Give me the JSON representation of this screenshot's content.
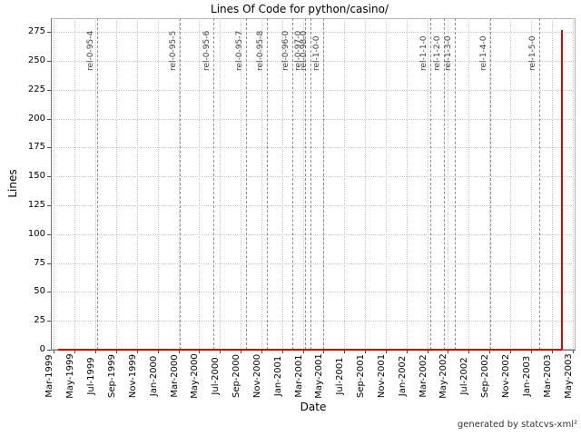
{
  "footer_credit": "generated by statcvs-xml²",
  "chart_data": {
    "type": "line",
    "title": "Lines Of Code for python/casino/",
    "xlabel": "Date",
    "ylabel": "Lines",
    "x_unit": "months since Mar-1999",
    "x_tick_step_months": 2,
    "x_tick_labels": [
      "Mar-1999",
      "May-1999",
      "Jul-1999",
      "Sep-1999",
      "Nov-1999",
      "Jan-2000",
      "Mar-2000",
      "May-2000",
      "Jul-2000",
      "Sep-2000",
      "Nov-2000",
      "Jan-2001",
      "Mar-2001",
      "May-2001",
      "Jul-2001",
      "Sep-2001",
      "Nov-2001",
      "Jan-2002",
      "Mar-2002",
      "May-2002",
      "Jul-2002",
      "Sep-2002",
      "Nov-2002",
      "Jan-2003",
      "Mar-2003",
      "May-2003"
    ],
    "y_ticks": [
      0,
      25,
      50,
      75,
      100,
      125,
      150,
      175,
      200,
      225,
      250,
      275
    ],
    "ylim": [
      0,
      287
    ],
    "xlim_months": [
      -0.3,
      50.3
    ],
    "grid": true,
    "legend_position": "none",
    "series": [
      {
        "name": "lines-of-code",
        "color": "#e00000",
        "points": [
          {
            "month": 0.4,
            "value": 0
          },
          {
            "month": 49.0,
            "value": 0
          },
          {
            "month": 49.0,
            "value": 277
          }
        ]
      }
    ],
    "release_markers": [
      {
        "label": "rel-0-95-4",
        "month": 4.2
      },
      {
        "label": "rel-0-95-5",
        "month": 12.1
      },
      {
        "label": "rel-0-95-6",
        "month": 15.4
      },
      {
        "label": "rel-0-95-7",
        "month": 18.5
      },
      {
        "label": "rel-0-95-8",
        "month": 20.5
      },
      {
        "label": "rel-0-96-0",
        "month": 23.0
      },
      {
        "label": "rel-0-97-0",
        "month": 24.2
      },
      {
        "label": "rel-0-98-0",
        "month": 24.7
      },
      {
        "label": "rel-1-0-0",
        "month": 26.0
      },
      {
        "label": "rel-1-1-0",
        "month": 36.3
      },
      {
        "label": "rel-1-2-0",
        "month": 37.6
      },
      {
        "label": "rel-1-3-0",
        "month": 38.7
      },
      {
        "label": "rel-1-4-0",
        "month": 42.1
      },
      {
        "label": "rel-1-5-0",
        "month": 46.8
      }
    ],
    "colors": {
      "series": "#e00000",
      "grid": "#c9c9c9",
      "release_line": "#8f8f8f",
      "plot_border": "#b6b6b6",
      "axis": "#777777",
      "tick": "#4a4a4a",
      "text": "#000000"
    }
  }
}
